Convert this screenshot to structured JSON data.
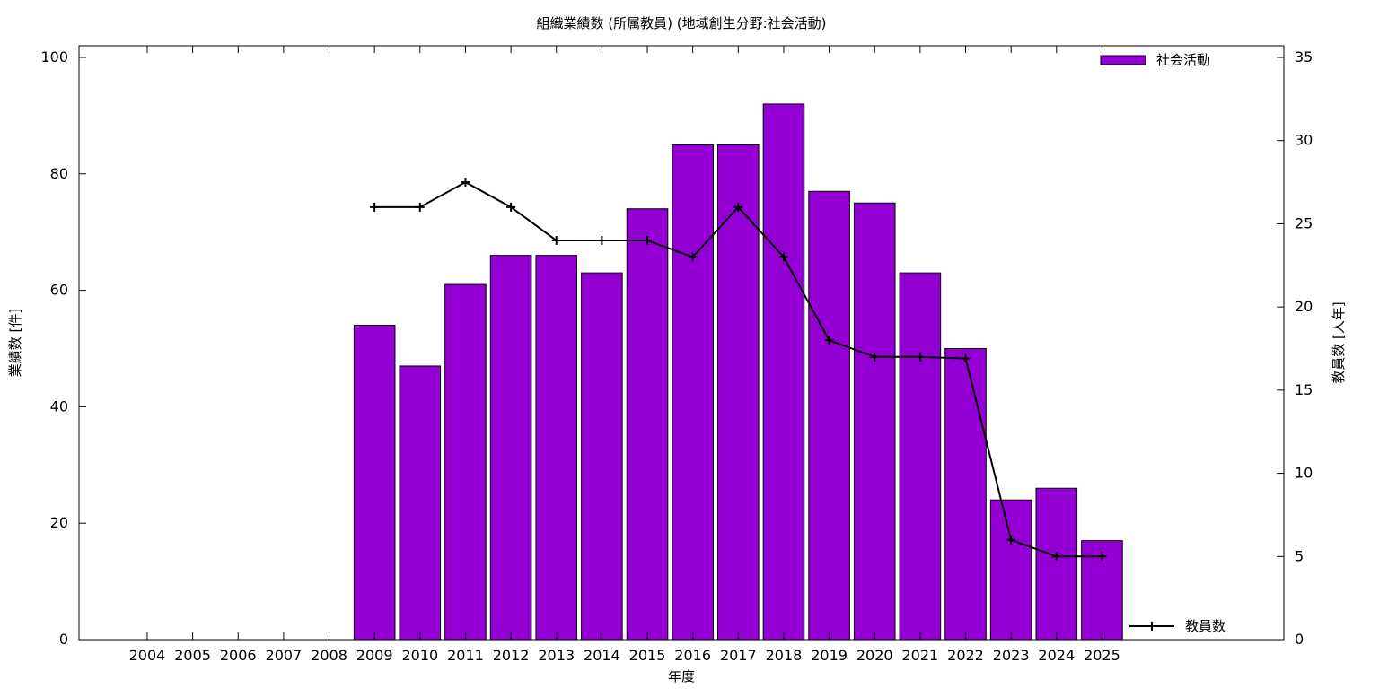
{
  "chart_data": {
    "type": "bar",
    "title": "組織業績数 (所属教員) (地域創生分野:社会活動)",
    "xlabel": "年度",
    "ylabel": "業績数 [件]",
    "y2label": "教員数 [人年]",
    "categories": [
      "2004",
      "2005",
      "2006",
      "2007",
      "2008",
      "2009",
      "2010",
      "2011",
      "2012",
      "2013",
      "2014",
      "2015",
      "2016",
      "2017",
      "2018",
      "2019",
      "2020",
      "2021",
      "2022",
      "2023",
      "2024",
      "2025"
    ],
    "ylim": [
      0,
      100
    ],
    "y2lim": [
      0,
      35
    ],
    "yticks": [
      0,
      20,
      40,
      60,
      80,
      100
    ],
    "y2ticks": [
      0,
      5,
      10,
      15,
      20,
      25,
      30,
      35
    ],
    "grid": false,
    "series": [
      {
        "name": "社会活動",
        "type": "bar",
        "axis": "left",
        "color": "#9400d3",
        "values": [
          null,
          null,
          null,
          null,
          null,
          54,
          47,
          61,
          66,
          66,
          63,
          74,
          85,
          85,
          92,
          77,
          75,
          63,
          50,
          24,
          26,
          17
        ]
      },
      {
        "name": "教員数",
        "type": "line",
        "axis": "right",
        "color": "#000000",
        "marker": "plus",
        "values": [
          null,
          null,
          null,
          null,
          null,
          26,
          26,
          27.5,
          26,
          24,
          24,
          24,
          23,
          26,
          23,
          18,
          17,
          17,
          16.9,
          6,
          5,
          5
        ]
      }
    ],
    "legend": [
      {
        "label": "社会活動",
        "position": "top-right",
        "style": "bar"
      },
      {
        "label": "教員数",
        "position": "bottom-right",
        "style": "line"
      }
    ]
  }
}
